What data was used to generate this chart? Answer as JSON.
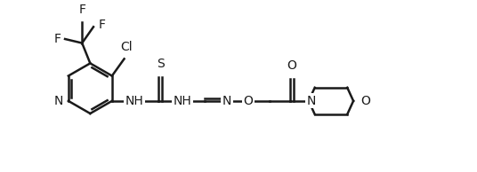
{
  "bg_color": "#ffffff",
  "line_color": "#1a1a1a",
  "line_width": 1.8,
  "font_size": 10,
  "figsize": [
    5.36,
    1.94
  ],
  "dpi": 100,
  "xlim": [
    0,
    11.0
  ],
  "ylim": [
    0.0,
    4.2
  ]
}
